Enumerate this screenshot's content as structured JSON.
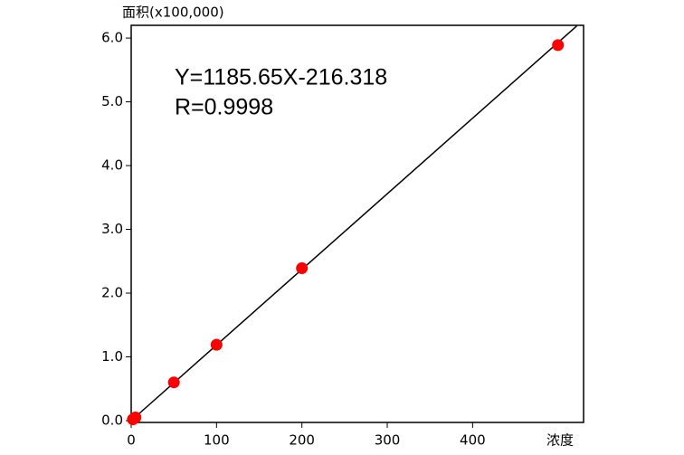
{
  "chart_data": {
    "type": "scatter",
    "y_label": "面积(x100,000)",
    "x_label": "浓度",
    "annotations": [
      "Y=1185.65X-216.318",
      "R=0.9998"
    ],
    "series": [
      {
        "name": "points",
        "color": "#ff0000",
        "x": [
          2,
          5,
          50,
          100,
          200,
          500
        ],
        "values": [
          0.02,
          0.05,
          0.6,
          1.19,
          2.39,
          5.89
        ]
      },
      {
        "name": "fit",
        "color": "#000000",
        "x": [
          0,
          522
        ],
        "values": [
          0,
          6.19
        ]
      }
    ],
    "xlim": [
      0,
      530
    ],
    "ylim": [
      0,
      6.2
    ],
    "xticks": [
      0,
      100,
      200,
      300,
      400
    ],
    "yticks": [
      {
        "value": 0,
        "label": "0.0"
      },
      {
        "value": 1,
        "label": "1.0"
      },
      {
        "value": 2,
        "label": "2.0"
      },
      {
        "value": 3,
        "label": "3.0"
      },
      {
        "value": 4,
        "label": "4.0"
      },
      {
        "value": 5,
        "label": "5.0"
      },
      {
        "value": 6,
        "label": "6.0"
      }
    ]
  }
}
